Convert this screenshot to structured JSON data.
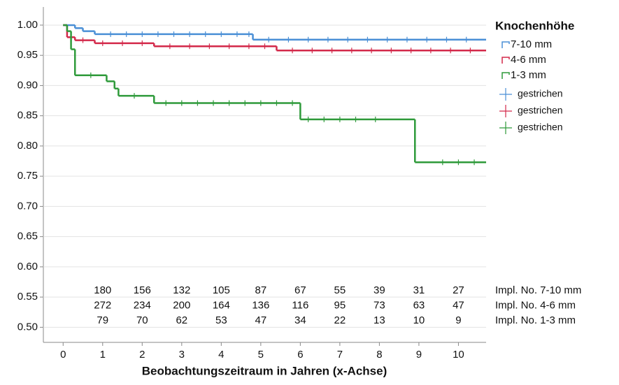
{
  "chart_data": {
    "type": "kaplan-meier",
    "x_label": "Beobachtungszeitraum in Jahren (x-Achse)",
    "legend_title": "Knochenhöhe",
    "xlim": [
      -0.5,
      10.7
    ],
    "ylim": [
      0.475,
      1.03
    ],
    "xticks": [
      0,
      1,
      2,
      3,
      4,
      5,
      6,
      7,
      8,
      9,
      10
    ],
    "yticks": [
      {
        "value": 0.5,
        "label": "0.50"
      },
      {
        "value": 0.55,
        "label": "0.55"
      },
      {
        "value": 0.6,
        "label": "0.60"
      },
      {
        "value": 0.65,
        "label": "0.65"
      },
      {
        "value": 0.7,
        "label": "0.70"
      },
      {
        "value": 0.75,
        "label": "0.75"
      },
      {
        "value": 0.8,
        "label": "0.80"
      },
      {
        "value": 0.85,
        "label": "0.85"
      },
      {
        "value": 0.9,
        "label": "0.90"
      },
      {
        "value": 0.95,
        "label": "0.95"
      },
      {
        "value": 1.0,
        "label": "1.00"
      }
    ],
    "grid": true,
    "series": [
      {
        "name": "7-10 mm",
        "color": "#4a8fd6",
        "x": [
          0,
          0.3,
          0.5,
          0.8,
          4.8
        ],
        "values": [
          1.0,
          0.995,
          0.99,
          0.985,
          0.976
        ]
      },
      {
        "name": "4-6 mm",
        "color": "#d3294a",
        "x": [
          0,
          0.1,
          0.3,
          0.8,
          2.3,
          5.4
        ],
        "values": [
          1.0,
          0.98,
          0.975,
          0.97,
          0.965,
          0.958
        ]
      },
      {
        "name": "1-3 mm",
        "color": "#2e9a3a",
        "x": [
          0,
          0.1,
          0.2,
          0.3,
          1.1,
          1.3,
          1.4,
          2.3,
          6.0,
          8.9
        ],
        "values": [
          1.0,
          0.99,
          0.96,
          0.917,
          0.907,
          0.895,
          0.883,
          0.871,
          0.844,
          0.773
        ]
      }
    ],
    "censor_series": [
      {
        "name": "gestrichen",
        "color": "#4a8fd6",
        "x": [
          1.2,
          1.6,
          2.0,
          2.4,
          2.8,
          3.2,
          3.6,
          4.0,
          4.4,
          4.7,
          5.2,
          5.7,
          6.2,
          6.7,
          7.2,
          7.7,
          8.2,
          8.7,
          9.2,
          9.7,
          10.2
        ],
        "values": [
          0.985,
          0.985,
          0.985,
          0.985,
          0.985,
          0.985,
          0.985,
          0.985,
          0.985,
          0.985,
          0.976,
          0.976,
          0.976,
          0.976,
          0.976,
          0.976,
          0.976,
          0.976,
          0.976,
          0.976,
          0.976
        ]
      },
      {
        "name": "gestrichen",
        "color": "#d3294a",
        "x": [
          0.5,
          1.0,
          1.5,
          2.0,
          2.7,
          3.2,
          3.7,
          4.2,
          4.7,
          5.1,
          5.8,
          6.3,
          6.8,
          7.3,
          7.8,
          8.3,
          8.8,
          9.3,
          9.8,
          10.3
        ],
        "values": [
          0.975,
          0.97,
          0.97,
          0.97,
          0.965,
          0.965,
          0.965,
          0.965,
          0.965,
          0.965,
          0.958,
          0.958,
          0.958,
          0.958,
          0.958,
          0.958,
          0.958,
          0.958,
          0.958,
          0.958
        ]
      },
      {
        "name": "gestrichen",
        "color": "#2e9a3a",
        "x": [
          0.7,
          1.8,
          2.6,
          3.0,
          3.4,
          3.8,
          4.2,
          4.6,
          5.0,
          5.4,
          5.8,
          6.2,
          6.6,
          7.0,
          7.4,
          7.9,
          9.6,
          10.0,
          10.4
        ],
        "values": [
          0.917,
          0.883,
          0.871,
          0.871,
          0.871,
          0.871,
          0.871,
          0.871,
          0.871,
          0.871,
          0.871,
          0.844,
          0.844,
          0.844,
          0.844,
          0.844,
          0.773,
          0.773,
          0.773
        ]
      }
    ],
    "risk_table": {
      "x": [
        1,
        2,
        3,
        4,
        5,
        6,
        7,
        8,
        9,
        10
      ],
      "rows": [
        {
          "label": "Impl. No. 7-10 mm",
          "values": [
            180,
            156,
            132,
            105,
            87,
            67,
            55,
            39,
            31,
            27
          ]
        },
        {
          "label": "Impl. No. 4-6 mm",
          "values": [
            272,
            234,
            200,
            164,
            136,
            116,
            95,
            73,
            63,
            47
          ]
        },
        {
          "label": "Impl. No. 1-3 mm",
          "values": [
            79,
            70,
            62,
            53,
            47,
            34,
            22,
            13,
            10,
            9
          ]
        }
      ]
    }
  }
}
